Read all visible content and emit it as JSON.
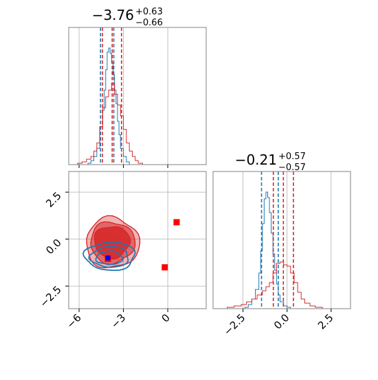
{
  "colors": {
    "blue": "#1f77b4",
    "red": "#d62728",
    "marker_red": "#ff0000",
    "marker_blue": "#0000ff",
    "grid": "#b0b0b0",
    "frame": "#808080"
  },
  "chart_data": [
    {
      "type": "histogram",
      "panel": "top-left marginal",
      "title": {
        "median": "−3.76",
        "plus": "+0.63",
        "minus": "−0.66"
      },
      "xlim": [
        -6.7,
        2.6
      ],
      "grid": true,
      "x_ticks": [
        -6,
        -3,
        0
      ],
      "series": [
        {
          "color": "blue",
          "bins": [
            -5.4,
            -5.2,
            -5.0,
            -4.8,
            -4.6,
            -4.4,
            -4.3,
            -4.2,
            -4.1,
            -4.0,
            -3.9,
            -3.8,
            -3.7,
            -3.6,
            -3.5,
            -3.4,
            -3.3,
            -3.2,
            -3.0,
            -2.8
          ],
          "counts": [
            0.01,
            0.03,
            0.06,
            0.12,
            0.28,
            0.4,
            0.55,
            0.7,
            0.83,
            0.86,
            0.82,
            0.75,
            0.66,
            0.55,
            0.45,
            0.32,
            0.22,
            0.12,
            0.06,
            0.02
          ],
          "quantiles": [
            -4.55,
            -3.65
          ]
        },
        {
          "color": "red",
          "bins": [
            -6.1,
            -5.8,
            -5.5,
            -5.2,
            -5.0,
            -4.8,
            -4.6,
            -4.4,
            -4.2,
            -4.0,
            -3.8,
            -3.6,
            -3.4,
            -3.2,
            -3.0,
            -2.8,
            -2.6,
            -2.4,
            -2.2,
            -2.0
          ],
          "counts": [
            0.01,
            0.02,
            0.04,
            0.06,
            0.1,
            0.16,
            0.28,
            0.42,
            0.5,
            0.55,
            0.6,
            0.52,
            0.44,
            0.36,
            0.26,
            0.16,
            0.1,
            0.06,
            0.03,
            0.01
          ],
          "quantiles": [
            -4.42,
            -3.76,
            -3.13
          ]
        }
      ]
    },
    {
      "type": "histogram",
      "panel": "bottom-right marginal",
      "title": {
        "median": "−0.21",
        "plus": "+0.57",
        "minus": "−0.57"
      },
      "xlim": [
        -4.2,
        3.6
      ],
      "grid": true,
      "x_ticks": [
        -2.5,
        0.0,
        2.5
      ],
      "x_tick_labels": [
        "−2.5",
        "0.0",
        "2.5"
      ],
      "series": [
        {
          "color": "blue",
          "bins": [
            -2.4,
            -2.2,
            -2.0,
            -1.8,
            -1.6,
            -1.5,
            -1.4,
            -1.3,
            -1.2,
            -1.1,
            -1.0,
            -0.9,
            -0.8,
            -0.7,
            -0.6,
            -0.5,
            -0.4,
            -0.2,
            0.0
          ],
          "counts": [
            0.01,
            0.03,
            0.07,
            0.14,
            0.26,
            0.42,
            0.62,
            0.8,
            0.85,
            0.81,
            0.7,
            0.55,
            0.4,
            0.28,
            0.18,
            0.1,
            0.05,
            0.02,
            0.01
          ],
          "quantiles": [
            -1.45,
            -0.5
          ]
        },
        {
          "color": "red",
          "bins": [
            -3.4,
            -3.0,
            -2.6,
            -2.3,
            -2.0,
            -1.7,
            -1.4,
            -1.2,
            -1.0,
            -0.8,
            -0.6,
            -0.4,
            -0.2,
            0.0,
            0.2,
            0.4,
            0.6,
            0.8,
            1.0,
            1.3,
            1.6
          ],
          "counts": [
            0.01,
            0.02,
            0.03,
            0.05,
            0.07,
            0.1,
            0.13,
            0.16,
            0.19,
            0.26,
            0.33,
            0.34,
            0.32,
            0.31,
            0.26,
            0.19,
            0.12,
            0.07,
            0.04,
            0.02,
            0.01
          ],
          "quantiles": [
            -0.78,
            -0.21,
            0.36
          ]
        }
      ]
    },
    {
      "type": "contour",
      "panel": "bottom-left joint",
      "xlim": [
        -6.7,
        2.6
      ],
      "ylim": [
        -3.7,
        3.6
      ],
      "grid": true,
      "x_ticks": [
        -6,
        -3,
        0
      ],
      "x_tick_labels": [
        "−6",
        "−3",
        "0"
      ],
      "y_ticks": [
        -2.5,
        0.0,
        2.5
      ],
      "y_tick_labels": [
        "−2.5",
        "0.0",
        "2.5"
      ],
      "red_contours": [
        {
          "center": [
            -3.75,
            -0.2
          ],
          "radii": [
            1.8,
            1.35
          ],
          "fill_opacity": 0.35
        },
        {
          "center": [
            -3.75,
            -0.18
          ],
          "radii": [
            1.5,
            1.1
          ],
          "fill_opacity": 0.55
        },
        {
          "center": [
            -3.78,
            -0.15
          ],
          "radii": [
            1.2,
            0.85
          ],
          "fill_opacity": 0.85
        }
      ],
      "blue_contours": [
        {
          "center": [
            -3.9,
            -0.9
          ],
          "radii": [
            1.7,
            0.75
          ]
        },
        {
          "center": [
            -3.92,
            -0.95
          ],
          "radii": [
            1.3,
            0.55
          ]
        },
        {
          "center": [
            -3.95,
            -1.0
          ],
          "radii": [
            0.9,
            0.35
          ]
        }
      ],
      "markers": [
        {
          "x": 0.6,
          "y": 0.9,
          "color": "marker_red"
        },
        {
          "x": -0.2,
          "y": -1.5,
          "color": "marker_red"
        },
        {
          "x": -4.05,
          "y": -1.05,
          "color": "marker_red"
        },
        {
          "x": -4.05,
          "y": -1.0,
          "color": "marker_blue"
        }
      ]
    }
  ]
}
